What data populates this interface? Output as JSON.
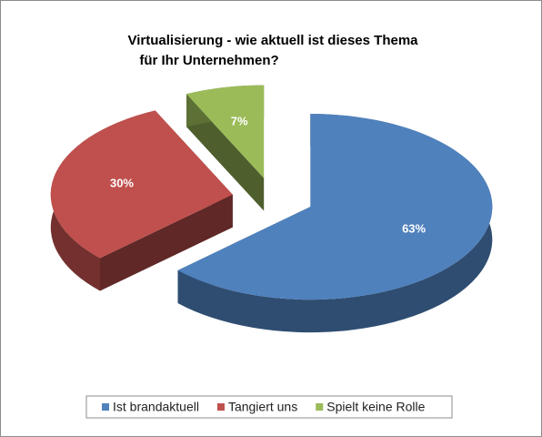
{
  "chart_data": {
    "type": "pie3d",
    "title": [
      "Virtualisierung - wie aktuell ist dieses Thema",
      "für Ihr Unternehmen?"
    ],
    "series": [
      {
        "name": "Ist brandaktuell",
        "color": "#4f81bd"
      },
      {
        "name": "Tangiert uns",
        "color": "#c0504d"
      },
      {
        "name": "Spielt keine Rolle",
        "color": "#9bbb59"
      }
    ],
    "values": [
      63,
      30,
      7
    ],
    "value_labels": [
      "63%",
      "30%",
      "7%"
    ],
    "legend": "bottom"
  }
}
